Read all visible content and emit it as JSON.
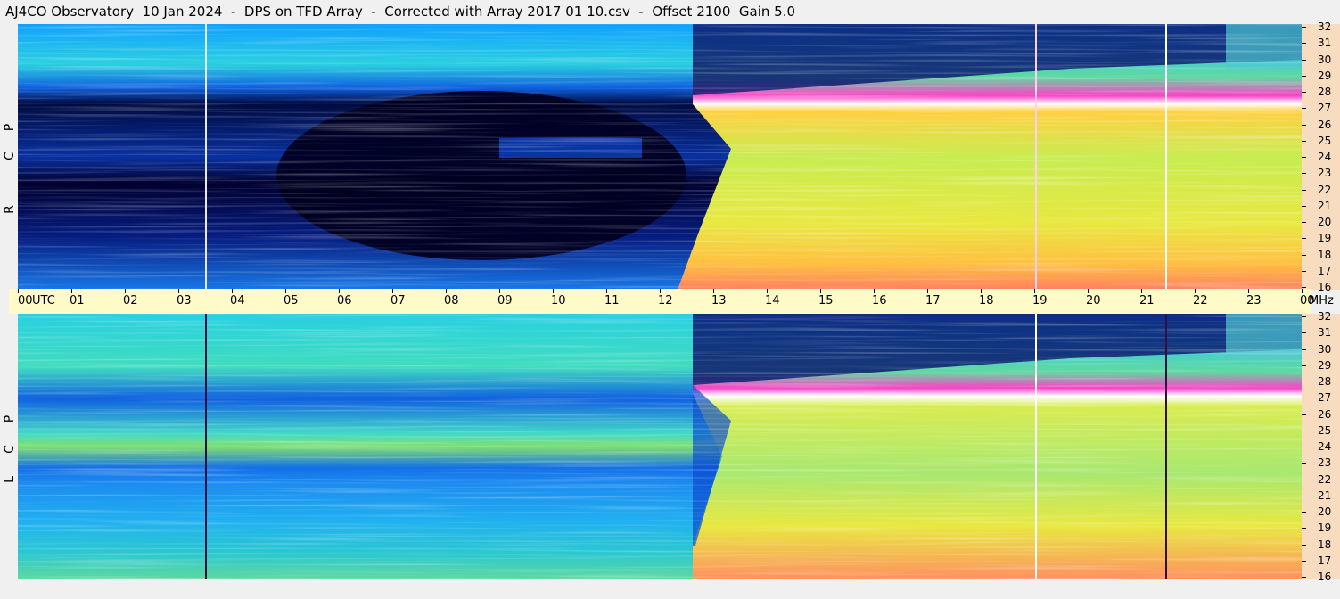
{
  "title": "AJ4CO Observatory  10 Jan 2024  -  DPS on TFD Array  -  Corrected with Array 2017 01 10.csv  -  Offset 2100  Gain 5.0",
  "panels": [
    {
      "id": "rcp",
      "letters": [
        "R",
        "C",
        "P"
      ]
    },
    {
      "id": "lcp",
      "letters": [
        "L",
        "C",
        "P"
      ]
    }
  ],
  "time_axis": {
    "labels": [
      "00",
      "UTC",
      "01",
      "02",
      "03",
      "04",
      "05",
      "06",
      "07",
      "08",
      "09",
      "10",
      "11",
      "12",
      "13",
      "14",
      "15",
      "16",
      "17",
      "18",
      "19",
      "20",
      "21",
      "22",
      "23",
      "00",
      "MHz"
    ]
  },
  "chart_data": {
    "type": "heatmap",
    "title": "AJ4CO Observatory  10 Jan 2024  -  DPS on TFD Array  -  Corrected with Array 2017 01 10.csv  -  Offset 2100  Gain 5.0",
    "x": {
      "unit": "UTC hour",
      "range": [
        0,
        24
      ],
      "ticks": [
        "00",
        "01",
        "02",
        "03",
        "04",
        "05",
        "06",
        "07",
        "08",
        "09",
        "10",
        "11",
        "12",
        "13",
        "14",
        "15",
        "16",
        "17",
        "18",
        "19",
        "20",
        "21",
        "22",
        "23",
        "00"
      ]
    },
    "y": {
      "unit": "MHz",
      "range": [
        16,
        32
      ],
      "ticks": [
        "16",
        "17",
        "18",
        "19",
        "20",
        "21",
        "22",
        "23",
        "24",
        "25",
        "26",
        "27",
        "28",
        "29",
        "30",
        "31",
        "32"
      ]
    },
    "panels": [
      "RCP",
      "LCP"
    ],
    "colormap": [
      "#000033",
      "#0028c8",
      "#0a6ee6",
      "#1eb4ff",
      "#28dcd2",
      "#8ce664",
      "#dcf03c",
      "#ffdc32",
      "#ff9650",
      "#ff3cc8",
      "#ffffff"
    ],
    "axis_colors": {
      "mhz_column": "#f8dcc0",
      "time_bar": "#fffbc8",
      "background": "#f0f0f0"
    }
  }
}
